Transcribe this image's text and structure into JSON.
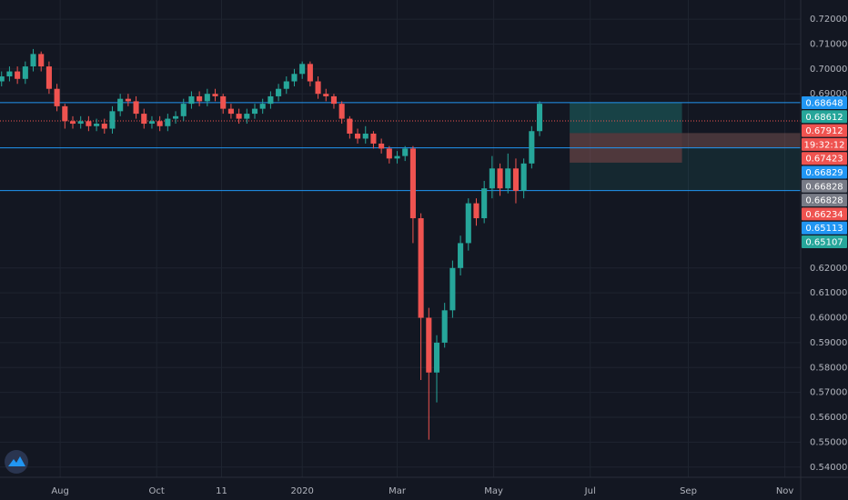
{
  "chart_data": {
    "type": "candlestick",
    "x": [
      -37,
      -32,
      -27,
      -22,
      -17,
      -12,
      -7,
      -2,
      3,
      8,
      13,
      18,
      23,
      28,
      33,
      38,
      43,
      48,
      53,
      58,
      63,
      68,
      73,
      78,
      83,
      88,
      93,
      98,
      103,
      108,
      113,
      118,
      123,
      128,
      133,
      138,
      143,
      148,
      153,
      158,
      163,
      168,
      173,
      178,
      183,
      188,
      193,
      198,
      203,
      208,
      213,
      218,
      223,
      228,
      233,
      238,
      243,
      248,
      253,
      258,
      263,
      268,
      273,
      278,
      283,
      288,
      293,
      298,
      303
    ],
    "open": [
      0.695,
      0.697,
      0.699,
      0.696,
      0.701,
      0.706,
      0.701,
      0.692,
      0.685,
      0.679,
      0.678,
      0.679,
      0.677,
      0.678,
      0.676,
      0.683,
      0.688,
      0.687,
      0.682,
      0.678,
      0.679,
      0.677,
      0.68,
      0.681,
      0.686,
      0.689,
      0.687,
      0.69,
      0.689,
      0.684,
      0.682,
      0.68,
      0.682,
      0.684,
      0.686,
      0.689,
      0.692,
      0.695,
      0.698,
      0.702,
      0.695,
      0.69,
      0.689,
      0.686,
      0.68,
      0.674,
      0.672,
      0.674,
      0.67,
      0.668,
      0.664,
      0.665,
      0.668,
      0.64,
      0.6,
      0.578,
      0.59,
      0.603,
      0.62,
      0.63,
      0.646,
      0.64,
      0.652,
      0.66,
      0.652,
      0.66,
      0.651,
      0.662,
      0.675
    ],
    "high": [
      0.699,
      0.701,
      0.701,
      0.703,
      0.708,
      0.707,
      0.703,
      0.694,
      0.686,
      0.681,
      0.681,
      0.681,
      0.68,
      0.68,
      0.685,
      0.69,
      0.69,
      0.689,
      0.684,
      0.681,
      0.681,
      0.682,
      0.683,
      0.688,
      0.691,
      0.691,
      0.692,
      0.692,
      0.69,
      0.686,
      0.684,
      0.684,
      0.686,
      0.688,
      0.691,
      0.694,
      0.697,
      0.7,
      0.703,
      0.703,
      0.697,
      0.692,
      0.69,
      0.687,
      0.681,
      0.676,
      0.677,
      0.675,
      0.672,
      0.669,
      0.667,
      0.669,
      0.669,
      0.642,
      0.604,
      0.593,
      0.606,
      0.623,
      0.633,
      0.648,
      0.648,
      0.655,
      0.665,
      0.662,
      0.666,
      0.664,
      0.664,
      0.677,
      0.687
    ],
    "low": [
      0.693,
      0.695,
      0.694,
      0.694,
      0.699,
      0.699,
      0.69,
      0.683,
      0.676,
      0.676,
      0.676,
      0.675,
      0.675,
      0.674,
      0.674,
      0.681,
      0.685,
      0.68,
      0.676,
      0.676,
      0.675,
      0.675,
      0.678,
      0.679,
      0.684,
      0.685,
      0.685,
      0.687,
      0.682,
      0.68,
      0.678,
      0.678,
      0.68,
      0.682,
      0.684,
      0.687,
      0.69,
      0.693,
      0.696,
      0.693,
      0.688,
      0.687,
      0.684,
      0.678,
      0.672,
      0.67,
      0.67,
      0.668,
      0.666,
      0.662,
      0.662,
      0.663,
      0.63,
      0.575,
      0.551,
      0.566,
      0.588,
      0.6,
      0.617,
      0.627,
      0.637,
      0.638,
      0.648,
      0.649,
      0.65,
      0.646,
      0.648,
      0.66,
      0.673
    ],
    "close": [
      0.697,
      0.699,
      0.696,
      0.701,
      0.706,
      0.701,
      0.692,
      0.685,
      0.679,
      0.678,
      0.679,
      0.677,
      0.678,
      0.676,
      0.683,
      0.688,
      0.687,
      0.682,
      0.678,
      0.679,
      0.677,
      0.68,
      0.681,
      0.686,
      0.689,
      0.687,
      0.69,
      0.689,
      0.684,
      0.682,
      0.68,
      0.682,
      0.684,
      0.686,
      0.689,
      0.692,
      0.695,
      0.698,
      0.702,
      0.695,
      0.69,
      0.689,
      0.686,
      0.68,
      0.674,
      0.672,
      0.674,
      0.67,
      0.668,
      0.664,
      0.665,
      0.668,
      0.64,
      0.6,
      0.578,
      0.59,
      0.603,
      0.62,
      0.63,
      0.646,
      0.64,
      0.652,
      0.66,
      0.652,
      0.66,
      0.651,
      0.662,
      0.675,
      0.686
    ],
    "up_color": "#26a69a",
    "down_color": "#ef5350",
    "xlim": [
      -38,
      468
    ],
    "xticks": [
      {
        "value": 0,
        "label": "Aug"
      },
      {
        "value": 61,
        "label": "Oct"
      },
      {
        "value": 102,
        "label": "11"
      },
      {
        "value": 153,
        "label": "2020"
      },
      {
        "value": 213,
        "label": "Mar"
      },
      {
        "value": 274,
        "label": "May"
      },
      {
        "value": 335,
        "label": "Jul"
      },
      {
        "value": 397,
        "label": "Sep"
      },
      {
        "value": 458,
        "label": "Nov"
      }
    ],
    "ylim": [
      0.5359,
      0.7277
    ],
    "yticks": [
      {
        "value": 0.72,
        "label": "0.72000"
      },
      {
        "value": 0.71,
        "label": "0.71000"
      },
      {
        "value": 0.7,
        "label": "0.70000"
      },
      {
        "value": 0.69,
        "label": "0.69000"
      },
      {
        "value": 0.62,
        "label": "0.62000"
      },
      {
        "value": 0.61,
        "label": "0.61000"
      },
      {
        "value": 0.6,
        "label": "0.60000"
      },
      {
        "value": 0.59,
        "label": "0.59000"
      },
      {
        "value": 0.58,
        "label": "0.58000"
      },
      {
        "value": 0.57,
        "label": "0.57000"
      },
      {
        "value": 0.56,
        "label": "0.56000"
      },
      {
        "value": 0.55,
        "label": "0.55000"
      },
      {
        "value": 0.54,
        "label": "0.54000"
      }
    ],
    "grid": true,
    "price_labels": [
      {
        "value": 0.68648,
        "color": "#2196f3",
        "line": "solid"
      },
      {
        "value": 0.68612,
        "color": "#26a69a"
      },
      {
        "value": 0.67912,
        "color": "#ef5350",
        "line": "dotted"
      },
      {
        "value": 0.67423,
        "color": "#ef5350"
      },
      {
        "value": 0.66829,
        "color": "#2196f3",
        "line": "solid"
      },
      {
        "value": 0.66828,
        "color": "#787b86"
      },
      {
        "value": 0.66828,
        "color": "#787b86"
      },
      {
        "value": 0.66234,
        "color": "#ef5350"
      },
      {
        "value": 0.65113,
        "color": "#2196f3",
        "line": "solid"
      },
      {
        "value": 0.65107,
        "color": "#26a69a"
      }
    ],
    "countdown": "19:32:12",
    "countdown_color": "#ef5350",
    "zones": [
      {
        "from": 322,
        "to": 393,
        "top": 0.68648,
        "bottom": 0.67423,
        "color": "#26a69a",
        "opacity": 0.3
      },
      {
        "from": 322,
        "to": 393,
        "top": 0.67423,
        "bottom": 0.66234,
        "color": "#ef5350",
        "opacity": 0.3
      },
      {
        "from": 393,
        "to": 468,
        "top": 0.67423,
        "bottom": 0.66829,
        "color": "#ef5350",
        "opacity": 0.25
      },
      {
        "from": 322,
        "to": 468,
        "top": 0.67423,
        "bottom": 0.65107,
        "color": "#26a69a",
        "opacity": 0.12
      }
    ]
  }
}
